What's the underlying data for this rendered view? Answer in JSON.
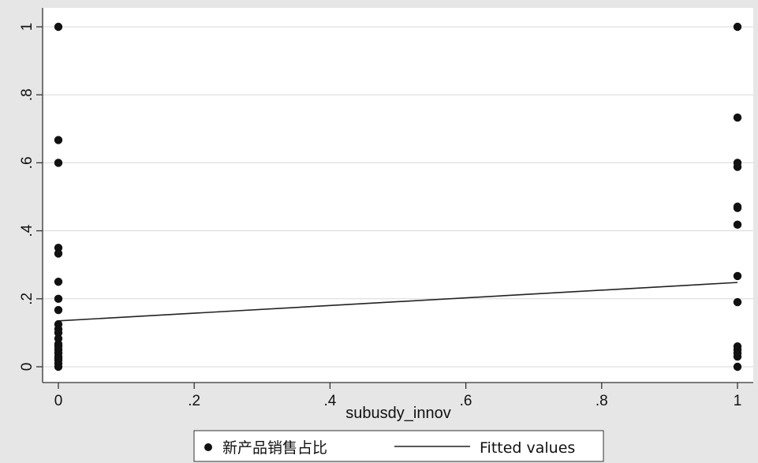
{
  "chart_data": {
    "type": "scatter",
    "xlabel": "subusdy_innov",
    "ylabel": "",
    "xlim": [
      0,
      1
    ],
    "ylim": [
      0,
      1
    ],
    "xticks": [
      {
        "value": 0,
        "label": "0"
      },
      {
        "value": 0.2,
        "label": ".2"
      },
      {
        "value": 0.4,
        "label": ".4"
      },
      {
        "value": 0.6,
        "label": ".6"
      },
      {
        "value": 0.8,
        "label": ".8"
      },
      {
        "value": 1,
        "label": "1"
      }
    ],
    "yticks": [
      {
        "value": 0,
        "label": "0"
      },
      {
        "value": 0.2,
        "label": ".2"
      },
      {
        "value": 0.4,
        "label": ".4"
      },
      {
        "value": 0.6,
        "label": ".6"
      },
      {
        "value": 0.8,
        "label": ".8"
      },
      {
        "value": 1,
        "label": "1"
      }
    ],
    "grid": true,
    "legend_position": "bottom",
    "series": [
      {
        "name": "新产品销售占比",
        "kind": "scatter",
        "color": "#111111",
        "x": [
          0,
          0,
          0,
          0,
          0,
          0,
          0,
          0,
          0,
          0,
          0,
          0,
          0,
          0,
          0,
          0,
          0,
          0,
          0,
          0,
          0,
          1,
          1,
          1,
          1,
          1,
          1,
          1,
          1,
          1,
          1,
          1,
          1,
          1,
          1
        ],
        "y": [
          1.0,
          0.667,
          0.6,
          0.35,
          0.333,
          0.25,
          0.2,
          0.167,
          0.111,
          0.1,
          0.083,
          0.067,
          0.05,
          0.04,
          0.03,
          0.02,
          0.01,
          0.0,
          0.125,
          0.06,
          0.025,
          1.0,
          0.733,
          0.6,
          0.588,
          0.471,
          0.467,
          0.418,
          0.267,
          0.19,
          0.06,
          0.05,
          0.04,
          0.03,
          0.0
        ]
      },
      {
        "name": "Fitted values",
        "kind": "line",
        "color": "#222222",
        "x": [
          0,
          1
        ],
        "y": [
          0.135,
          0.248
        ]
      }
    ]
  }
}
